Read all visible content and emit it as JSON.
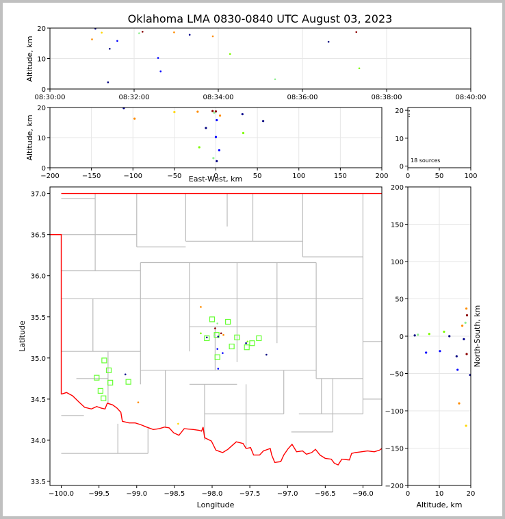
{
  "title": "Oklahoma LMA 0830-0840 UTC August 03, 2023",
  "colors": {
    "frame": "#c0c0c0",
    "state_border": "#ff0000",
    "county_lines": "#bbbbbb",
    "grid": "#e6e6e6",
    "station_marker": "#66ff33"
  },
  "source_count_label": "18 sources",
  "chart_data": [
    {
      "id": "time_height",
      "type": "scatter",
      "xlabel": "",
      "ylabel": "Altitude, km",
      "x_ticks": [
        "08:30:00",
        "08:32:00",
        "08:34:00",
        "08:36:00",
        "08:38:00",
        "08:40:00"
      ],
      "xlim_minutes": [
        0,
        10
      ],
      "ylim": [
        0,
        20
      ],
      "y_ticks": [
        0,
        10,
        20
      ],
      "grid": true
    },
    {
      "id": "ew_height",
      "type": "scatter",
      "xlabel": "East-West, km",
      "ylabel": "Altitude, km",
      "xlim": [
        -200,
        200
      ],
      "x_ticks": [
        -200,
        -150,
        -100,
        -50,
        0,
        50,
        100,
        150,
        200
      ],
      "ylim": [
        0,
        20
      ],
      "y_ticks": [
        0,
        10,
        20
      ],
      "grid": true
    },
    {
      "id": "histogram",
      "type": "scatter",
      "xlim": [
        0,
        100
      ],
      "x_ticks": [
        0,
        50,
        100
      ],
      "ylim": [
        0,
        20
      ],
      "y_ticks": [
        0,
        10,
        20
      ],
      "annotation": "18 sources"
    },
    {
      "id": "plan_view",
      "type": "scatter",
      "xlabel": "Longitude",
      "ylabel": "Latitude",
      "xlim": [
        -100.15,
        -95.75
      ],
      "ylim": [
        33.45,
        37.08
      ],
      "x_ticks": [
        -100.0,
        -99.5,
        -99.0,
        -98.5,
        -98.0,
        -97.5,
        -97.0,
        -96.5,
        -96.0
      ],
      "x_tick_labels": [
        "−100.0",
        "−99.5",
        "−99.0",
        "−98.5",
        "−98.0",
        "−97.5",
        "−97.0",
        "−96.5",
        "−96.0"
      ],
      "y_ticks": [
        33.5,
        34.0,
        34.5,
        35.0,
        35.5,
        36.0,
        36.5,
        37.0
      ],
      "y_tick_labels": [
        "33.5",
        "34.0",
        "34.5",
        "35.0",
        "35.5",
        "36.0",
        "36.5",
        "37.0"
      ],
      "grid": false
    },
    {
      "id": "ns_height",
      "type": "scatter",
      "xlabel": "Altitude, km",
      "ylabel": "North-South, km",
      "xlim": [
        0,
        20
      ],
      "x_ticks": [
        0,
        10,
        20
      ],
      "ylim": [
        -200,
        200
      ],
      "y_ticks": [
        -200,
        -150,
        -100,
        -50,
        0,
        50,
        100,
        150,
        200
      ],
      "grid": true
    }
  ],
  "sources": [
    {
      "t": 1.08,
      "ew": -111,
      "ns": -52,
      "lon": -99.15,
      "lat": 34.8,
      "alt": 19.8,
      "color": "#00008b"
    },
    {
      "t": 1.0,
      "ew": -98,
      "ns": -90,
      "lon": -98.98,
      "lat": 34.46,
      "alt": 16.3,
      "color": "#ff8c00"
    },
    {
      "t": 1.23,
      "ew": -50,
      "ns": -120,
      "lon": -98.45,
      "lat": 34.2,
      "alt": 18.5,
      "color": "#ffd700"
    },
    {
      "t": 2.95,
      "ew": -22,
      "ns": 37,
      "lon": -98.15,
      "lat": 35.62,
      "alt": 18.6,
      "color": "#ff8c00"
    },
    {
      "t": 2.2,
      "ew": -4,
      "ns": 28,
      "lon": -97.96,
      "lat": 35.36,
      "alt": 18.8,
      "color": "#8b0000"
    },
    {
      "t": 2.12,
      "ew": -2,
      "ns": 18,
      "lon": -97.93,
      "lat": 35.42,
      "alt": 18.3,
      "color": "#90ee90"
    },
    {
      "t": 3.87,
      "ew": 5,
      "ns": 14,
      "lon": -97.85,
      "lat": 35.28,
      "alt": 17.3,
      "color": "#ff8c00"
    },
    {
      "t": 4.28,
      "ew": 33,
      "ns": 6,
      "lon": -97.53,
      "lat": 35.2,
      "alt": 11.5,
      "color": "#7cfc00"
    },
    {
      "t": 3.32,
      "ew": 32,
      "ns": -4,
      "lon": -97.55,
      "lat": 35.18,
      "alt": 17.8,
      "color": "#00008b"
    },
    {
      "t": 6.62,
      "ew": 57,
      "ns": -27,
      "lon": -97.28,
      "lat": 35.04,
      "alt": 15.5,
      "color": "#000080"
    },
    {
      "t": 1.42,
      "ew": -12,
      "ns": 0,
      "lon": -98.07,
      "lat": 35.25,
      "alt": 13.2,
      "color": "#000080"
    },
    {
      "t": 2.57,
      "ew": 0,
      "ns": -20,
      "lon": -97.93,
      "lat": 35.11,
      "alt": 10.2,
      "color": "#0000ff"
    },
    {
      "t": 1.6,
      "ew": 1,
      "ns": -45,
      "lon": -97.92,
      "lat": 34.87,
      "alt": 15.8,
      "color": "#0000ff"
    },
    {
      "t": 2.63,
      "ew": 4,
      "ns": -22,
      "lon": -97.86,
      "lat": 35.06,
      "alt": 5.8,
      "color": "#0000ff"
    },
    {
      "t": 7.35,
      "ew": -20,
      "ns": 3,
      "lon": -98.15,
      "lat": 35.3,
      "alt": 6.8,
      "color": "#7cfc00"
    },
    {
      "t": 5.35,
      "ew": -3,
      "ns": 2,
      "lon": -97.97,
      "lat": 35.27,
      "alt": 3.2,
      "color": "#90ee90"
    },
    {
      "t": 1.38,
      "ew": 1,
      "ns": 1,
      "lon": -97.92,
      "lat": 35.26,
      "alt": 2.2,
      "color": "#000080"
    },
    {
      "t": 7.28,
      "ew": 0,
      "ns": -24,
      "lon": -97.88,
      "lat": 35.3,
      "alt": 18.7,
      "color": "#8b0000"
    }
  ],
  "stations_lonlat": [
    [
      -99.43,
      34.97
    ],
    [
      -99.37,
      34.85
    ],
    [
      -99.53,
      34.76
    ],
    [
      -99.35,
      34.7
    ],
    [
      -99.48,
      34.6
    ],
    [
      -99.44,
      34.51
    ],
    [
      -99.11,
      34.71
    ],
    [
      -98.0,
      35.47
    ],
    [
      -97.79,
      35.44
    ],
    [
      -98.07,
      35.24
    ],
    [
      -97.94,
      35.28
    ],
    [
      -97.67,
      35.25
    ],
    [
      -97.74,
      35.14
    ],
    [
      -97.93,
      35.01
    ],
    [
      -97.54,
      35.13
    ],
    [
      -97.47,
      35.18
    ],
    [
      -97.38,
      35.24
    ]
  ],
  "state_border": [
    [
      -100.0,
      37.0
    ],
    [
      -95.63,
      37.0
    ]
  ],
  "panhandle_edge": [
    [
      -100.15,
      36.5
    ],
    [
      -100.0,
      36.5
    ],
    [
      -100.0,
      34.56
    ]
  ],
  "red_river": [
    [
      -100.0,
      34.56
    ],
    [
      -99.93,
      34.58
    ],
    [
      -99.85,
      34.54
    ],
    [
      -99.76,
      34.46
    ],
    [
      -99.69,
      34.4
    ],
    [
      -99.6,
      34.38
    ],
    [
      -99.53,
      34.41
    ],
    [
      -99.47,
      34.39
    ],
    [
      -99.42,
      34.38
    ],
    [
      -99.39,
      34.45
    ],
    [
      -99.32,
      34.43
    ],
    [
      -99.26,
      34.39
    ],
    [
      -99.21,
      34.34
    ],
    [
      -99.19,
      34.23
    ],
    [
      -99.1,
      34.21
    ],
    [
      -99.02,
      34.21
    ],
    [
      -98.95,
      34.19
    ],
    [
      -98.87,
      34.16
    ],
    [
      -98.78,
      34.13
    ],
    [
      -98.7,
      34.14
    ],
    [
      -98.63,
      34.16
    ],
    [
      -98.57,
      34.15
    ],
    [
      -98.51,
      34.09
    ],
    [
      -98.44,
      34.06
    ],
    [
      -98.37,
      34.14
    ],
    [
      -98.25,
      34.13
    ],
    [
      -98.17,
      34.12
    ],
    [
      -98.14,
      34.11
    ],
    [
      -98.12,
      34.16
    ],
    [
      -98.1,
      34.03
    ],
    [
      -98.01,
      33.99
    ],
    [
      -97.95,
      33.88
    ],
    [
      -97.86,
      33.85
    ],
    [
      -97.79,
      33.89
    ],
    [
      -97.68,
      33.98
    ],
    [
      -97.59,
      33.96
    ],
    [
      -97.55,
      33.9
    ],
    [
      -97.49,
      33.91
    ],
    [
      -97.45,
      33.82
    ],
    [
      -97.37,
      33.82
    ],
    [
      -97.32,
      33.87
    ],
    [
      -97.23,
      33.9
    ],
    [
      -97.21,
      33.82
    ],
    [
      -97.17,
      33.73
    ],
    [
      -97.09,
      33.74
    ],
    [
      -97.05,
      33.82
    ],
    [
      -96.99,
      33.9
    ],
    [
      -96.94,
      33.95
    ],
    [
      -96.88,
      33.86
    ],
    [
      -96.8,
      33.87
    ],
    [
      -96.75,
      33.83
    ],
    [
      -96.68,
      33.85
    ],
    [
      -96.63,
      33.89
    ],
    [
      -96.57,
      33.82
    ],
    [
      -96.5,
      33.78
    ],
    [
      -96.42,
      33.77
    ],
    [
      -96.38,
      33.72
    ],
    [
      -96.33,
      33.7
    ],
    [
      -96.28,
      33.77
    ],
    [
      -96.18,
      33.76
    ],
    [
      -96.15,
      33.84
    ],
    [
      -96.1,
      33.85
    ],
    [
      -96.02,
      33.86
    ],
    [
      -95.94,
      33.87
    ],
    [
      -95.85,
      33.86
    ],
    [
      -95.78,
      33.88
    ],
    [
      -95.75,
      33.9
    ]
  ],
  "county_lines": [
    [
      [
        -100.0,
        36.94
      ],
      [
        -99.55,
        36.94
      ]
    ],
    [
      [
        -99.55,
        37.0
      ],
      [
        -99.55,
        36.5
      ]
    ],
    [
      [
        -99.0,
        37.0
      ],
      [
        -99.0,
        36.35
      ]
    ],
    [
      [
        -98.35,
        37.0
      ],
      [
        -98.35,
        36.42
      ]
    ],
    [
      [
        -97.8,
        37.0
      ],
      [
        -97.8,
        36.6
      ]
    ],
    [
      [
        -97.46,
        37.0
      ],
      [
        -97.46,
        36.42
      ]
    ],
    [
      [
        -96.8,
        37.0
      ],
      [
        -96.8,
        36.23
      ]
    ],
    [
      [
        -96.0,
        37.0
      ],
      [
        -96.0,
        35.72
      ]
    ],
    [
      [
        -100.0,
        36.5
      ],
      [
        -99.0,
        36.5
      ]
    ],
    [
      [
        -99.55,
        36.5
      ],
      [
        -99.55,
        36.06
      ]
    ],
    [
      [
        -99.0,
        36.35
      ],
      [
        -98.35,
        36.35
      ]
    ],
    [
      [
        -98.35,
        36.42
      ],
      [
        -97.46,
        36.42
      ]
    ],
    [
      [
        -97.46,
        36.42
      ],
      [
        -96.8,
        36.42
      ]
    ],
    [
      [
        -96.8,
        36.23
      ],
      [
        -96.0,
        36.23
      ]
    ],
    [
      [
        -100.0,
        36.06
      ],
      [
        -98.95,
        36.06
      ]
    ],
    [
      [
        -98.95,
        36.16
      ],
      [
        -98.95,
        35.72
      ]
    ],
    [
      [
        -98.3,
        36.16
      ],
      [
        -98.3,
        35.72
      ]
    ],
    [
      [
        -97.67,
        36.16
      ],
      [
        -97.67,
        35.72
      ]
    ],
    [
      [
        -97.14,
        36.16
      ],
      [
        -97.14,
        35.72
      ]
    ],
    [
      [
        -96.62,
        36.16
      ],
      [
        -96.62,
        35.38
      ]
    ],
    [
      [
        -98.95,
        36.16
      ],
      [
        -96.62,
        36.16
      ]
    ],
    [
      [
        -100.0,
        35.72
      ],
      [
        -96.0,
        35.72
      ]
    ],
    [
      [
        -99.58,
        35.72
      ],
      [
        -99.58,
        35.08
      ]
    ],
    [
      [
        -98.95,
        35.72
      ],
      [
        -98.95,
        34.68
      ]
    ],
    [
      [
        -98.3,
        35.72
      ],
      [
        -98.3,
        35.38
      ]
    ],
    [
      [
        -97.67,
        35.72
      ],
      [
        -97.67,
        35.38
      ]
    ],
    [
      [
        -97.14,
        35.72
      ],
      [
        -97.14,
        35.18
      ]
    ],
    [
      [
        -98.3,
        35.38
      ],
      [
        -96.62,
        35.38
      ]
    ],
    [
      [
        -100.0,
        35.08
      ],
      [
        -99.58,
        35.08
      ]
    ],
    [
      [
        -98.3,
        35.38
      ],
      [
        -98.3,
        35.08
      ]
    ],
    [
      [
        -97.96,
        35.38
      ],
      [
        -97.96,
        34.85
      ]
    ],
    [
      [
        -97.67,
        35.38
      ],
      [
        -97.67,
        34.95
      ]
    ],
    [
      [
        -96.62,
        35.38
      ],
      [
        -96.62,
        34.75
      ]
    ],
    [
      [
        -99.58,
        35.08
      ],
      [
        -98.95,
        35.08
      ]
    ],
    [
      [
        -98.95,
        34.85
      ],
      [
        -96.62,
        34.85
      ]
    ],
    [
      [
        -99.38,
        35.08
      ],
      [
        -99.38,
        34.45
      ]
    ],
    [
      [
        -99.8,
        34.75
      ],
      [
        -99.38,
        34.75
      ]
    ],
    [
      [
        -98.62,
        34.85
      ],
      [
        -98.62,
        34.15
      ]
    ],
    [
      [
        -98.3,
        34.68
      ],
      [
        -97.67,
        34.68
      ]
    ],
    [
      [
        -98.1,
        34.68
      ],
      [
        -98.1,
        34.0
      ]
    ],
    [
      [
        -97.55,
        34.68
      ],
      [
        -97.55,
        33.9
      ]
    ],
    [
      [
        -97.05,
        34.85
      ],
      [
        -97.05,
        34.32
      ]
    ],
    [
      [
        -96.62,
        34.75
      ],
      [
        -96.0,
        34.75
      ]
    ],
    [
      [
        -96.4,
        34.75
      ],
      [
        -96.4,
        34.1
      ]
    ],
    [
      [
        -96.0,
        35.72
      ],
      [
        -96.0,
        34.32
      ]
    ],
    [
      [
        -96.85,
        34.32
      ],
      [
        -96.0,
        34.32
      ]
    ],
    [
      [
        -98.1,
        34.32
      ],
      [
        -97.05,
        34.32
      ]
    ],
    [
      [
        -96.0,
        35.2
      ],
      [
        -95.75,
        35.2
      ]
    ],
    [
      [
        -96.0,
        34.5
      ],
      [
        -95.75,
        34.5
      ]
    ],
    [
      [
        -100.0,
        34.3
      ],
      [
        -99.7,
        34.3
      ]
    ],
    [
      [
        -99.25,
        34.2
      ],
      [
        -99.25,
        33.84
      ]
    ],
    [
      [
        -98.85,
        34.15
      ],
      [
        -98.85,
        33.84
      ]
    ],
    [
      [
        -100.0,
        33.84
      ],
      [
        -98.85,
        33.84
      ]
    ],
    [
      [
        -96.95,
        34.1
      ],
      [
        -96.4,
        34.1
      ]
    ],
    [
      [
        -96.55,
        34.75
      ],
      [
        -96.55,
        34.32
      ]
    ]
  ]
}
